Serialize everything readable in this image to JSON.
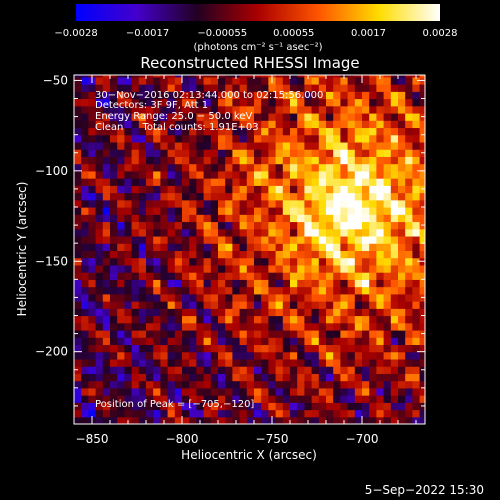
{
  "chart_data": {
    "type": "heatmap",
    "title": "Reconstructed RHESSI Image",
    "xlabel": "Heliocentric X (arcsec)",
    "ylabel": "Heliocentric Y (arcsec)",
    "xlim": [
      -860,
      -665
    ],
    "ylim": [
      -240,
      -47
    ],
    "xticks": [
      -850,
      -800,
      -750,
      -700
    ],
    "xtick_labels": [
      "−850",
      "−800",
      "−750",
      "−700"
    ],
    "yticks": [
      -50,
      -100,
      -150,
      -200
    ],
    "ytick_labels": [
      "−50",
      "−100",
      "−150",
      "−200"
    ],
    "colorbar": {
      "range": [
        -0.0028,
        0.0028
      ],
      "ticks": [
        -0.0028,
        -0.0017,
        -0.00055,
        0.00055,
        0.0017,
        0.0028
      ],
      "tick_labels": [
        "−0.0028",
        "−0.0017",
        "−0.00055",
        "0.00055",
        "0.0017",
        "0.0028"
      ],
      "units": "(photons cm⁻² s⁻¹ asec⁻²)",
      "colors": [
        "#0000ff",
        "#4400cc",
        "#220022",
        "#aa0000",
        "#ff5500",
        "#ffdd00",
        "#ffffff"
      ]
    },
    "annotations": {
      "line1": "30−Nov−2016 02:13:44.000 to 02:15:56.000",
      "line2": "Detectors: 3F 9F, Att 1",
      "line3": "Energy Range: 25.0 − 50.0 keV",
      "line4": "Clean      Total counts: 1.91E+03",
      "peak": "Position of Peak = [−705,−120]"
    },
    "peak": [
      -705,
      -120
    ]
  },
  "footer": {
    "date": "5−Sep−2022 15:30"
  }
}
